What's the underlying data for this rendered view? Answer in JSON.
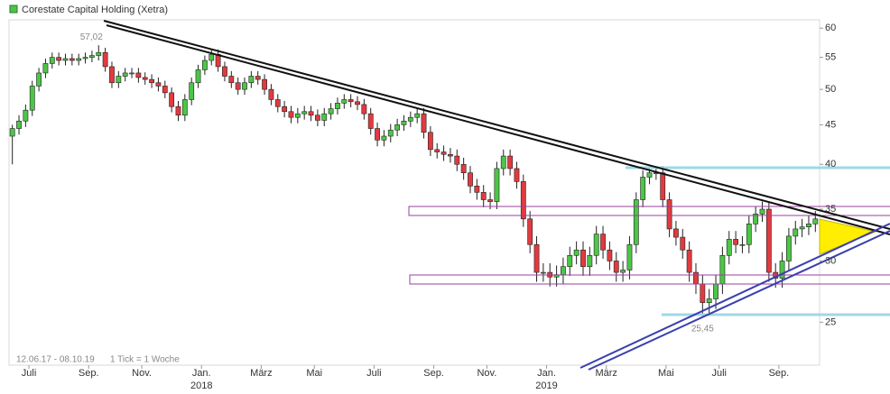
{
  "chart_data": {
    "type": "candlestick",
    "title": "Corestate Capital Holding (Xetra)",
    "range_text": "12.06.17 - 08.10.19",
    "tick_text": "1 Tick = 1 Woche",
    "max_label": "57,02",
    "min_label": "25,45",
    "up_color": "#4cc646",
    "down_color": "#e23a3f",
    "log_scale": true,
    "ylim": [
      22,
      61.5
    ],
    "yticks": [
      25,
      30,
      35,
      40,
      45,
      50,
      55,
      60
    ],
    "xlim": [
      0,
      122
    ],
    "xticks": [
      {
        "value": 3,
        "label": "Juli"
      },
      {
        "value": 12,
        "label": "Sep."
      },
      {
        "value": 20,
        "label": "Nov."
      },
      {
        "value": 29,
        "label": "Jan."
      },
      {
        "value": 38,
        "label": "März"
      },
      {
        "value": 46,
        "label": "Mai"
      },
      {
        "value": 55,
        "label": "Juli"
      },
      {
        "value": 64,
        "label": "Sep."
      },
      {
        "value": 72,
        "label": "Nov."
      },
      {
        "value": 81,
        "label": "Jan."
      },
      {
        "value": 90,
        "label": "März"
      },
      {
        "value": 99,
        "label": "Mai"
      },
      {
        "value": 107,
        "label": "Juli"
      },
      {
        "value": 116,
        "label": "Sep."
      }
    ],
    "year_ticks": [
      {
        "value": 29,
        "label": "2018"
      },
      {
        "value": 81,
        "label": "2019"
      }
    ],
    "candles": [
      [
        43.5,
        45,
        40,
        44.5
      ],
      [
        44.5,
        46.3,
        43.7,
        45.5
      ],
      [
        45.5,
        47.8,
        44.7,
        47
      ],
      [
        47,
        51.3,
        46.2,
        50.5
      ],
      [
        50.5,
        53.3,
        49.7,
        52.5
      ],
      [
        52.5,
        54.8,
        51.7,
        54
      ],
      [
        54,
        55.8,
        53.2,
        55
      ],
      [
        55,
        55.8,
        53.7,
        54.5
      ],
      [
        54.5,
        55.6,
        53.7,
        54.8
      ],
      [
        54.8,
        55.6,
        53.7,
        54.5
      ],
      [
        54.5,
        55.6,
        53.7,
        54.8
      ],
      [
        54.8,
        55.8,
        54,
        55
      ],
      [
        55,
        56.1,
        54.2,
        55.3
      ],
      [
        55.3,
        57.02,
        54.5,
        55.8
      ],
      [
        55.8,
        56.6,
        52.7,
        53.5
      ],
      [
        53.5,
        54.3,
        50.2,
        51
      ],
      [
        51,
        52.8,
        50.2,
        52
      ],
      [
        52,
        53.3,
        51.2,
        52.5
      ],
      [
        52.5,
        53.3,
        51.7,
        52.5
      ],
      [
        52.5,
        53.3,
        51,
        51.8
      ],
      [
        51.8,
        52.6,
        50.7,
        51.5
      ],
      [
        51.5,
        52.3,
        50.2,
        51
      ],
      [
        51,
        51.8,
        49.7,
        50.5
      ],
      [
        50.5,
        51.3,
        48.7,
        49.5
      ],
      [
        49.5,
        50.3,
        46.7,
        47.5
      ],
      [
        47.5,
        48.3,
        45.5,
        46.3
      ],
      [
        46.3,
        49.3,
        45.5,
        48.5
      ],
      [
        48.5,
        51.8,
        47.7,
        51
      ],
      [
        51,
        53.8,
        50.2,
        53
      ],
      [
        53,
        55.3,
        52.2,
        54.5
      ],
      [
        54.5,
        56.3,
        53.7,
        55.5
      ],
      [
        55.5,
        56.3,
        52.7,
        53.5
      ],
      [
        53.5,
        54.3,
        51.2,
        52
      ],
      [
        52,
        52.8,
        50.2,
        51
      ],
      [
        51,
        51.8,
        49.2,
        50
      ],
      [
        50,
        51.8,
        49.2,
        51
      ],
      [
        51,
        52.8,
        50.2,
        52
      ],
      [
        52,
        52.8,
        50.7,
        51.5
      ],
      [
        51.5,
        52.3,
        49.2,
        50
      ],
      [
        50,
        50.8,
        47.7,
        48.5
      ],
      [
        48.5,
        49.3,
        46.7,
        47.5
      ],
      [
        47.5,
        48.3,
        46,
        46.8
      ],
      [
        46.8,
        47.6,
        45.2,
        46
      ],
      [
        46,
        47.3,
        45.2,
        46.5
      ],
      [
        46.5,
        47.6,
        45.7,
        46.8
      ],
      [
        46.8,
        47.6,
        45.5,
        46.3
      ],
      [
        46.3,
        47.1,
        44.8,
        45.6
      ],
      [
        45.6,
        47.3,
        44.8,
        46.5
      ],
      [
        46.5,
        48,
        45.7,
        47.2
      ],
      [
        47.2,
        48.8,
        46.4,
        48
      ],
      [
        48,
        49.3,
        47.2,
        48.5
      ],
      [
        48.5,
        49.3,
        47.4,
        48.2
      ],
      [
        48.2,
        49,
        47,
        47.8
      ],
      [
        47.8,
        48.6,
        45.7,
        46.5
      ],
      [
        46.5,
        47.3,
        43.7,
        44.5
      ],
      [
        44.5,
        45.3,
        42.2,
        43
      ],
      [
        43,
        44.3,
        42.2,
        43.5
      ],
      [
        43.5,
        45.1,
        42.7,
        44.3
      ],
      [
        44.3,
        45.8,
        43.5,
        45
      ],
      [
        45,
        46.3,
        44.2,
        45.5
      ],
      [
        45.5,
        46.8,
        44.7,
        46
      ],
      [
        46,
        47.3,
        45.2,
        46.5
      ],
      [
        46.5,
        47.3,
        43.2,
        44
      ],
      [
        44,
        44.8,
        41,
        41.8
      ],
      [
        41.8,
        42.6,
        40.7,
        41.5
      ],
      [
        41.5,
        42.3,
        40.4,
        41.2
      ],
      [
        41.2,
        42,
        40.2,
        41
      ],
      [
        41,
        41.8,
        39.2,
        40
      ],
      [
        40,
        40.8,
        38.2,
        39
      ],
      [
        39,
        39.8,
        36.7,
        37.5
      ],
      [
        37.5,
        38.3,
        36,
        36.8
      ],
      [
        36.8,
        37.6,
        35.2,
        36
      ],
      [
        36,
        36.8,
        35,
        35.8
      ],
      [
        35.8,
        40.3,
        35,
        39.5
      ],
      [
        39.5,
        41.8,
        38.7,
        41
      ],
      [
        41,
        41.8,
        38.7,
        39.5
      ],
      [
        39.5,
        40.3,
        37.2,
        38
      ],
      [
        38,
        38.8,
        33.2,
        34
      ],
      [
        34,
        34.8,
        30.7,
        31.5
      ],
      [
        31.5,
        32.3,
        28.2,
        29
      ],
      [
        29,
        29.8,
        28.2,
        29
      ],
      [
        29,
        29.8,
        27.8,
        28.6
      ],
      [
        28.6,
        29.6,
        27.8,
        28.8
      ],
      [
        28.8,
        30.3,
        28,
        29.5
      ],
      [
        29.5,
        31.3,
        28.7,
        30.5
      ],
      [
        30.5,
        31.8,
        29.7,
        31
      ],
      [
        31,
        31.8,
        28.7,
        29.5
      ],
      [
        29.5,
        31.3,
        28.7,
        30.5
      ],
      [
        30.5,
        33.3,
        29.7,
        32.5
      ],
      [
        32.5,
        33.3,
        30.2,
        31
      ],
      [
        31,
        31.8,
        29.2,
        30
      ],
      [
        30,
        30.8,
        28.2,
        29
      ],
      [
        29,
        30,
        28.2,
        29.2
      ],
      [
        29.2,
        32.3,
        28.4,
        31.5
      ],
      [
        31.5,
        36.8,
        30.7,
        36
      ],
      [
        36,
        39.3,
        35.2,
        38.5
      ],
      [
        38.5,
        39.8,
        37.7,
        39
      ],
      [
        39,
        39.8,
        38.2,
        39
      ],
      [
        39,
        39.8,
        35.2,
        36
      ],
      [
        36,
        36.8,
        32.2,
        33
      ],
      [
        33,
        33.8,
        31.4,
        32.2
      ],
      [
        32.2,
        33,
        30.2,
        31
      ],
      [
        31,
        31.8,
        28.2,
        29
      ],
      [
        29,
        29.8,
        27.2,
        28
      ],
      [
        28,
        28.8,
        25.45,
        26.5
      ],
      [
        26.5,
        27.6,
        25.7,
        26.8
      ],
      [
        26.8,
        28.8,
        26,
        28
      ],
      [
        28,
        31.3,
        27.2,
        30.5
      ],
      [
        30.5,
        32.8,
        29.7,
        32
      ],
      [
        32,
        32.8,
        30.7,
        31.5
      ],
      [
        31.5,
        32.3,
        30.7,
        31.5
      ],
      [
        31.5,
        34.3,
        30.7,
        33.5
      ],
      [
        33.5,
        35.3,
        32.7,
        34.5
      ],
      [
        34.5,
        35.8,
        33.7,
        35
      ],
      [
        35,
        35.8,
        28.2,
        29
      ],
      [
        29,
        29.8,
        27.7,
        28.5
      ],
      [
        28.5,
        30.8,
        27.7,
        30
      ],
      [
        30,
        33.1,
        29.2,
        32.3
      ],
      [
        32.3,
        33.8,
        31.5,
        33
      ],
      [
        33,
        34,
        32.2,
        33.2
      ],
      [
        33.2,
        34.3,
        32.4,
        33.5
      ],
      [
        33.5,
        34.8,
        32.7,
        34
      ]
    ]
  }
}
